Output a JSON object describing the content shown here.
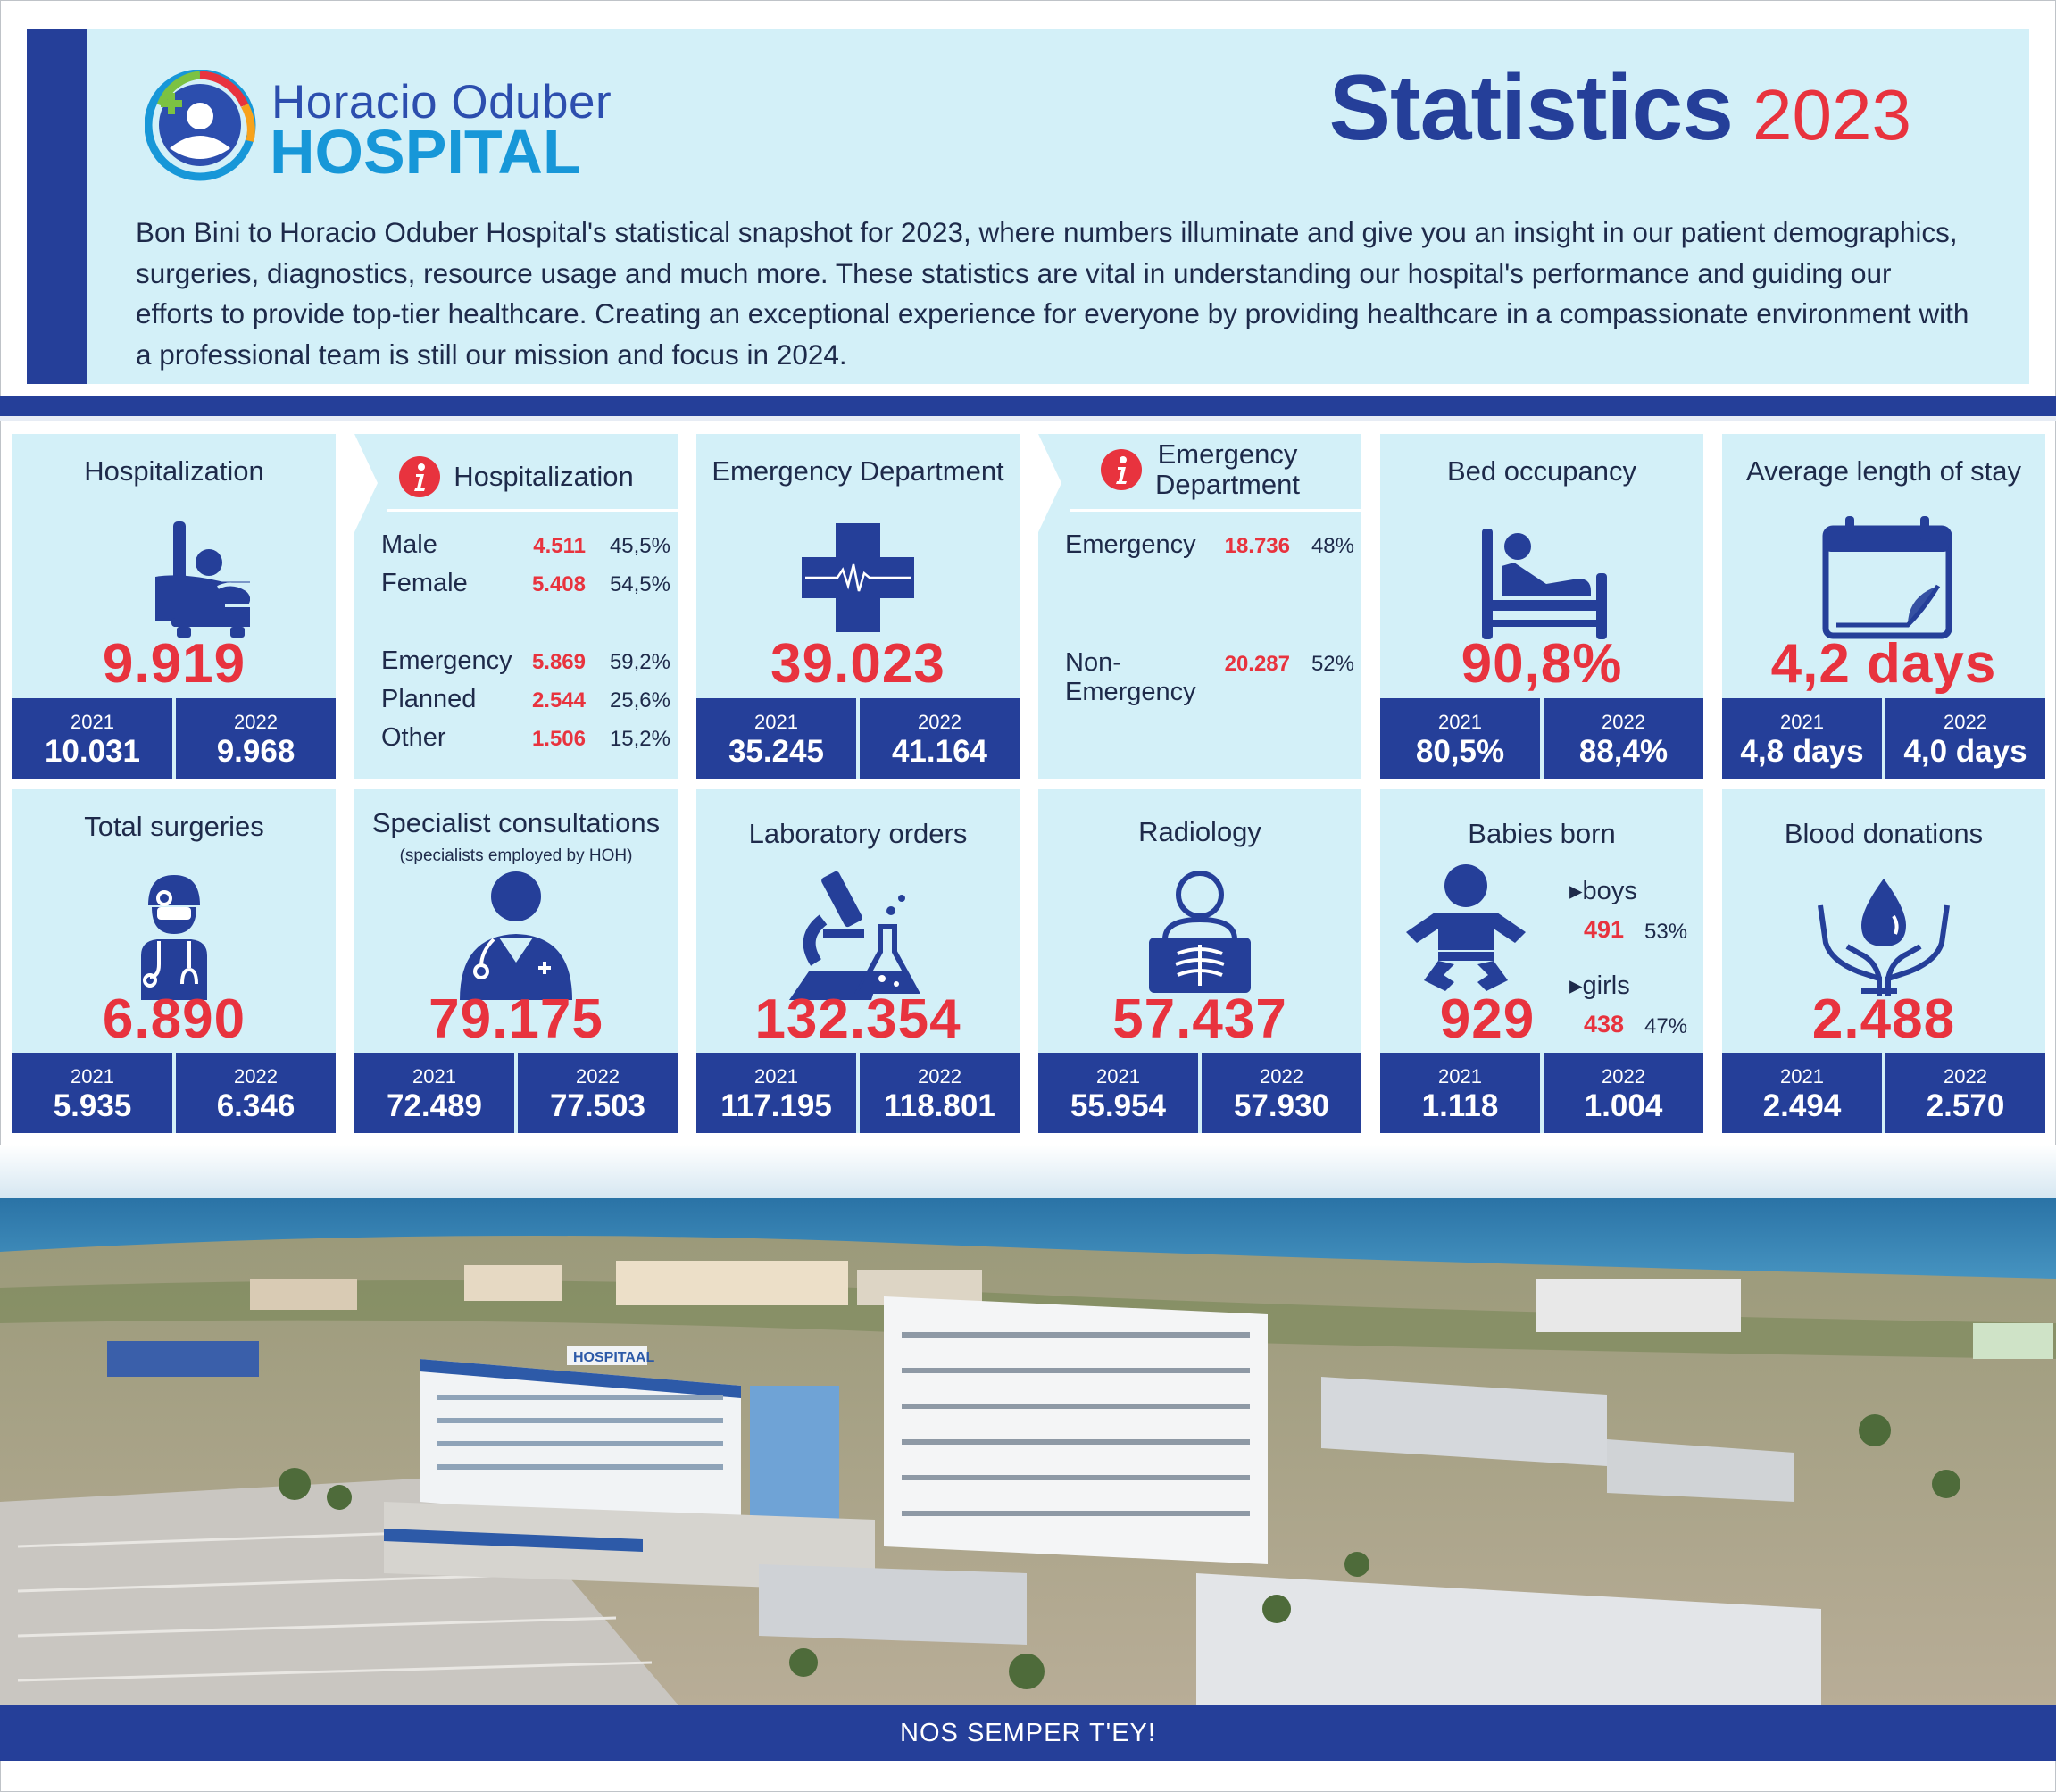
{
  "header": {
    "logo_line1": "Horacio Oduber",
    "logo_line2": "HOSPITAL",
    "title": "Statistics",
    "year": "2023",
    "intro": "Bon Bini to Horacio Oduber Hospital's statistical snapshot for 2023, where numbers illuminate and give you an insight in our patient demographics, surgeries, diagnostics, resource usage and much more. These statistics are vital in understanding our hospital's performance and guiding our efforts to provide top-tier healthcare. Creating an exceptional experience for everyone by providing healthcare in a compassionate environment with a professional team is still our mission and focus in 2024."
  },
  "year_labels": {
    "prev2": "2021",
    "prev1": "2022"
  },
  "hospitalization": {
    "title": "Hospitalization",
    "icon": "hospital-bed-icon",
    "value": "9.919",
    "y2021": "10.031",
    "y2022": "9.968"
  },
  "hospitalization_breakdown": {
    "title": "Hospitalization",
    "icon": "info-icon",
    "rows": [
      {
        "label": "Male",
        "value": "4.511",
        "pct": "45,5%"
      },
      {
        "label": "Female",
        "value": "5.408",
        "pct": "54,5%"
      },
      {
        "label": "Emergency",
        "value": "5.869",
        "pct": "59,2%"
      },
      {
        "label": "Planned",
        "value": "2.544",
        "pct": "25,6%"
      },
      {
        "label": "Other",
        "value": "1.506",
        "pct": "15,2%"
      }
    ]
  },
  "emergency": {
    "title": "Emergency Department",
    "icon": "medical-cross-icon",
    "value": "39.023",
    "y2021": "35.245",
    "y2022": "41.164"
  },
  "emergency_breakdown": {
    "title_line1": "Emergency",
    "title_line2": "Department",
    "icon": "info-icon",
    "rows": [
      {
        "label": "Emergency",
        "value": "18.736",
        "pct": "48%"
      },
      {
        "label_line1": "Non-",
        "label_line2": "Emergency",
        "value": "20.287",
        "pct": "52%"
      }
    ]
  },
  "bed_occupancy": {
    "title": "Bed occupancy",
    "icon": "patient-bed-icon",
    "value": "90,8%",
    "y2021": "80,5%",
    "y2022": "88,4%"
  },
  "length_of_stay": {
    "title": "Average length of stay",
    "icon": "calendar-icon",
    "value": "4,2 days",
    "y2021": "4,8 days",
    "y2022": "4,0 days"
  },
  "surgeries": {
    "title": "Total surgeries",
    "icon": "surgeon-icon",
    "value": "6.890",
    "y2021": "5.935",
    "y2022": "6.346"
  },
  "specialists": {
    "title": "Specialist consultations",
    "subtitle": "(specialists employed by HOH)",
    "icon": "doctor-icon",
    "value": "79.175",
    "y2021": "72.489",
    "y2022": "77.503"
  },
  "laboratory": {
    "title": "Laboratory orders",
    "icon": "microscope-icon",
    "value": "132.354",
    "y2021": "117.195",
    "y2022": "118.801"
  },
  "radiology": {
    "title": "Radiology",
    "icon": "xray-icon",
    "value": "57.437",
    "y2021": "55.954",
    "y2022": "57.930"
  },
  "babies": {
    "title": "Babies born",
    "icon": "baby-icon",
    "value": "929",
    "y2021": "1.118",
    "y2022": "1.004",
    "boys_label": "▸boys",
    "boys_value": "491",
    "boys_pct": "53%",
    "girls_label": "▸girls",
    "girls_value": "438",
    "girls_pct": "47%"
  },
  "blood": {
    "title": "Blood donations",
    "icon": "blood-drop-hands-icon",
    "value": "2.488",
    "y2021": "2.494",
    "y2022": "2.570"
  },
  "photo": {
    "building_sign": "HOSPITAAL"
  },
  "footer": {
    "slogan": "NOS SEMPER T'EY!"
  },
  "colors": {
    "navy": "#253f99",
    "accent_red": "#e8333e",
    "panel": "#d3f0f8",
    "logo_blue": "#1797d8"
  }
}
